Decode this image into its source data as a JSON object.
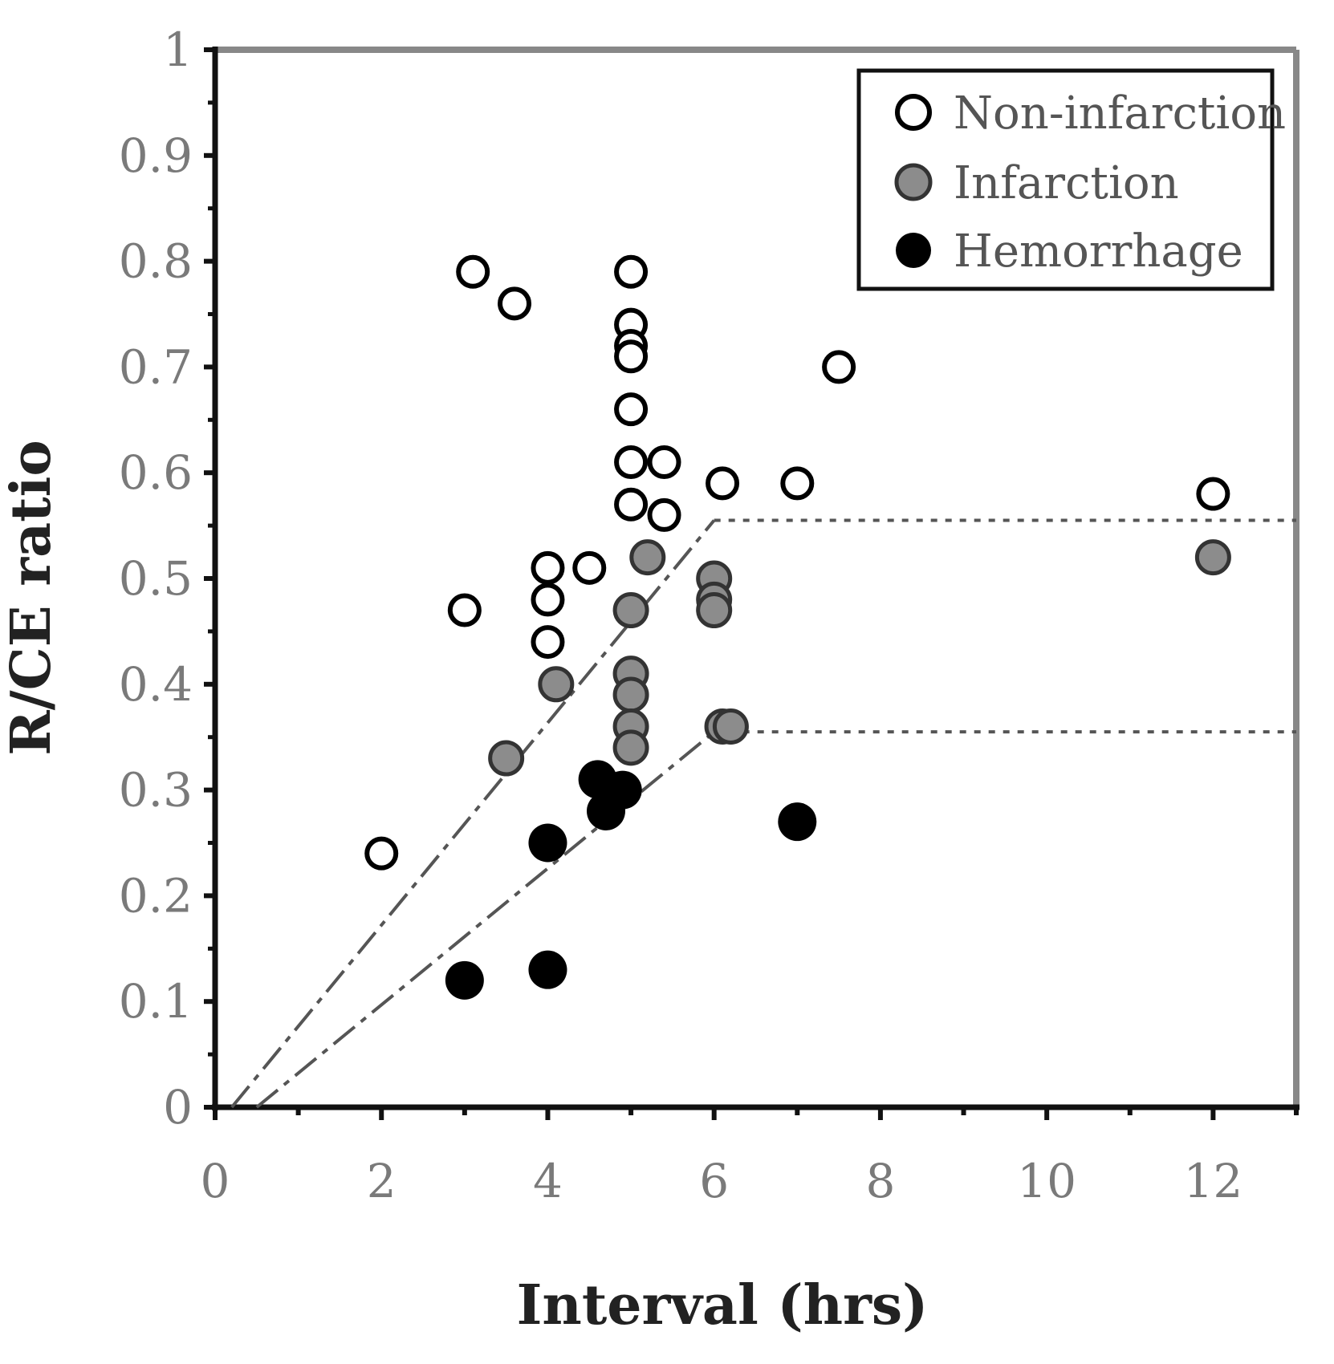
{
  "chart_data": {
    "type": "scatter",
    "xlabel": "Interval (hrs)",
    "ylabel": "R/CE ratio",
    "xlim": [
      0,
      13
    ],
    "ylim": [
      0,
      1
    ],
    "x_ticks": [
      0,
      2,
      4,
      6,
      8,
      10,
      12
    ],
    "x_tick_labels": [
      "0",
      "2",
      "4",
      "6",
      "8",
      "10",
      "12"
    ],
    "y_ticks": [
      0,
      0.1,
      0.2,
      0.3,
      0.4,
      0.5,
      0.6,
      0.7,
      0.8,
      0.9,
      1
    ],
    "y_tick_labels": [
      "0",
      "0.1",
      "0.2",
      "0.3",
      "0.4",
      "0.5",
      "0.6",
      "0.7",
      "0.8",
      "0.9",
      "1"
    ],
    "grid": false,
    "legend_position": "top-right",
    "series": [
      {
        "name": "Non-infarction",
        "marker": "open-circle",
        "color": "#000000",
        "points": [
          {
            "x": 2,
            "y": 0.24
          },
          {
            "x": 3,
            "y": 0.47
          },
          {
            "x": 3.1,
            "y": 0.79
          },
          {
            "x": 3.6,
            "y": 0.76
          },
          {
            "x": 4,
            "y": 0.51
          },
          {
            "x": 4,
            "y": 0.48
          },
          {
            "x": 4,
            "y": 0.44
          },
          {
            "x": 4.5,
            "y": 0.51
          },
          {
            "x": 5,
            "y": 0.79
          },
          {
            "x": 5,
            "y": 0.74
          },
          {
            "x": 5,
            "y": 0.72
          },
          {
            "x": 5,
            "y": 0.71
          },
          {
            "x": 5,
            "y": 0.66
          },
          {
            "x": 5,
            "y": 0.61
          },
          {
            "x": 5,
            "y": 0.57
          },
          {
            "x": 5.4,
            "y": 0.61
          },
          {
            "x": 5.4,
            "y": 0.56
          },
          {
            "x": 6.1,
            "y": 0.59
          },
          {
            "x": 7,
            "y": 0.59
          },
          {
            "x": 7.5,
            "y": 0.7
          },
          {
            "x": 12,
            "y": 0.58
          }
        ]
      },
      {
        "name": "Infarction",
        "marker": "gray-circle",
        "color": "#8c8c8c",
        "points": [
          {
            "x": 3.5,
            "y": 0.33
          },
          {
            "x": 4.1,
            "y": 0.4
          },
          {
            "x": 5,
            "y": 0.47
          },
          {
            "x": 5,
            "y": 0.41
          },
          {
            "x": 5,
            "y": 0.39
          },
          {
            "x": 5,
            "y": 0.36
          },
          {
            "x": 5,
            "y": 0.34
          },
          {
            "x": 5.2,
            "y": 0.52
          },
          {
            "x": 6,
            "y": 0.5
          },
          {
            "x": 6,
            "y": 0.48
          },
          {
            "x": 6,
            "y": 0.47
          },
          {
            "x": 6.1,
            "y": 0.36
          },
          {
            "x": 6.2,
            "y": 0.36
          },
          {
            "x": 12,
            "y": 0.52
          }
        ]
      },
      {
        "name": "Hemorrhage",
        "marker": "filled-circle",
        "color": "#000000",
        "points": [
          {
            "x": 3,
            "y": 0.12
          },
          {
            "x": 4,
            "y": 0.13
          },
          {
            "x": 4,
            "y": 0.25
          },
          {
            "x": 4.6,
            "y": 0.31
          },
          {
            "x": 4.7,
            "y": 0.28
          },
          {
            "x": 4.9,
            "y": 0.3
          },
          {
            "x": 7,
            "y": 0.27
          }
        ]
      }
    ],
    "reference_lines": [
      {
        "style": "dotted",
        "y": 0.555,
        "x_range": [
          6,
          13
        ]
      },
      {
        "style": "dotted",
        "y": 0.355,
        "x_range": [
          6,
          13
        ]
      },
      {
        "style": "dashed",
        "from": [
          0.2,
          0
        ],
        "to": [
          6,
          0.555
        ]
      },
      {
        "style": "dashed",
        "from": [
          0.5,
          0
        ],
        "to": [
          6,
          0.355
        ]
      }
    ],
    "colors": {
      "axis": "#111111",
      "frame": "#888888",
      "tick_label": "#7a7a7a",
      "reference_line": "#555555"
    }
  }
}
